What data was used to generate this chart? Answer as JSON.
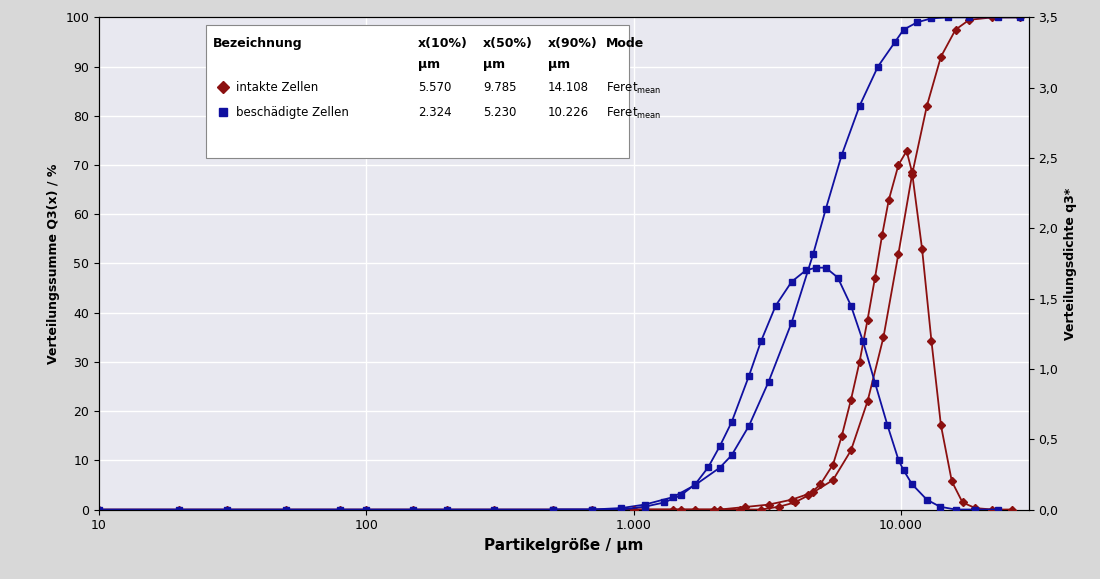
{
  "xlabel": "Partikelgröße / μm",
  "ylabel_left": "Verteilungssumme Q3(x) / %",
  "ylabel_right": "Verteilungsdichte q3*",
  "xlim": [
    10,
    30000
  ],
  "ylim_left": [
    0,
    100
  ],
  "ylim_right": [
    0,
    3.5
  ],
  "yticks_left": [
    0,
    10,
    20,
    30,
    40,
    50,
    60,
    70,
    80,
    90,
    100
  ],
  "yticks_right": [
    0.0,
    0.5,
    1.0,
    1.5,
    2.0,
    2.5,
    3.0,
    3.5
  ],
  "color_red": "#8B1010",
  "color_blue": "#1010A0",
  "fig_bg": "#d8d8d8",
  "ax_bg": "#e8e8f0",
  "cumulative_red_x": [
    10,
    20,
    30,
    50,
    80,
    100,
    150,
    200,
    300,
    500,
    700,
    900,
    1100,
    1400,
    1700,
    2100,
    2600,
    3200,
    3900,
    4700,
    5570,
    6500,
    7500,
    8600,
    9785,
    11000,
    12500,
    14108,
    16000,
    18000,
    22000,
    28000
  ],
  "cumulative_red_y": [
    0,
    0,
    0,
    0,
    0,
    0,
    0,
    0,
    0,
    0,
    0,
    0,
    0,
    0,
    0,
    0,
    0.5,
    1.0,
    2.0,
    3.5,
    6.0,
    12.0,
    22.0,
    35.0,
    52.0,
    68.0,
    82.0,
    92.0,
    97.5,
    99.5,
    100,
    100
  ],
  "cumulative_blue_x": [
    10,
    20,
    30,
    50,
    80,
    100,
    150,
    200,
    300,
    500,
    700,
    900,
    1100,
    1400,
    1700,
    2100,
    2324,
    2700,
    3200,
    3900,
    4700,
    5230,
    6000,
    7000,
    8200,
    9500,
    10226,
    11500,
    13000,
    15000,
    18000,
    23000,
    28000
  ],
  "cumulative_blue_y": [
    0,
    0,
    0,
    0,
    0,
    0,
    0,
    0,
    0,
    0,
    0,
    0.3,
    1.0,
    2.5,
    5.0,
    8.5,
    11.0,
    17.0,
    26.0,
    38.0,
    52.0,
    61.0,
    72.0,
    82.0,
    90.0,
    95.0,
    97.5,
    99.0,
    99.8,
    100,
    100,
    100,
    100
  ],
  "density_red_x": [
    1000,
    1500,
    2000,
    2500,
    3000,
    3500,
    4000,
    4500,
    5000,
    5570,
    6000,
    6500,
    7000,
    7500,
    8000,
    8500,
    9000,
    9785,
    10500,
    11000,
    12000,
    13000,
    14108,
    15500,
    17000,
    19000,
    22000,
    26000
  ],
  "density_red_y": [
    0,
    0,
    0,
    0,
    0,
    0.02,
    0.05,
    0.1,
    0.18,
    0.32,
    0.52,
    0.78,
    1.05,
    1.35,
    1.65,
    1.95,
    2.2,
    2.45,
    2.55,
    2.4,
    1.85,
    1.2,
    0.6,
    0.2,
    0.05,
    0.01,
    0,
    0
  ],
  "density_blue_x": [
    500,
    700,
    900,
    1100,
    1300,
    1500,
    1700,
    1900,
    2100,
    2324,
    2700,
    3000,
    3400,
    3900,
    4400,
    4800,
    5230,
    5800,
    6500,
    7200,
    8000,
    8900,
    9800,
    10226,
    11000,
    12500,
    14000,
    16000,
    19000,
    23000
  ],
  "density_blue_y": [
    0,
    0,
    0,
    0.02,
    0.05,
    0.1,
    0.18,
    0.3,
    0.45,
    0.62,
    0.95,
    1.2,
    1.45,
    1.62,
    1.7,
    1.72,
    1.72,
    1.65,
    1.45,
    1.2,
    0.9,
    0.6,
    0.35,
    0.28,
    0.18,
    0.07,
    0.02,
    0,
    0,
    0
  ],
  "xtick_positions": [
    10,
    100,
    1000,
    10000
  ],
  "xtick_labels": [
    "10",
    "100",
    "1.000",
    "10.000"
  ]
}
